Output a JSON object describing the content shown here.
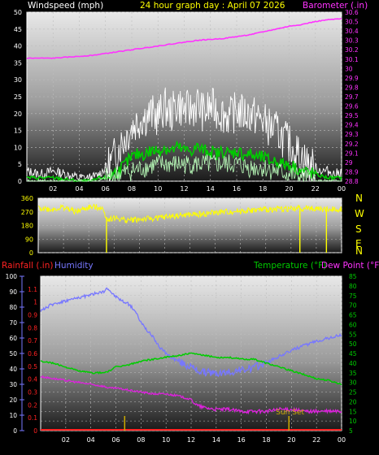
{
  "header": {
    "windspeed_label": "Windspeed (mph)",
    "title": "24 hour graph day : April 07 2026",
    "barometer_label": "Barometer (.in)"
  },
  "compass_letters": [
    "N",
    "W",
    "S",
    "E",
    "N"
  ],
  "lower_header": {
    "rainfall_label": "Rainfall (.in)",
    "humidity_label": "Humidity",
    "temperature_label": "Temperature (°F)",
    "dewpoint_label": "Dew Point (°F)"
  },
  "sunset_label": "Sun Set",
  "colors": {
    "wind_gust": "#ffffff",
    "wind_avg": "#00cc00",
    "wind_low": "#bbffbb",
    "barometer": "#ff33ff",
    "direction": "#ffff00",
    "humidity": "#7777ff",
    "temperature": "#00cc00",
    "dewpoint": "#dd22dd",
    "rainfall": "#ff2222",
    "sun_marker": "#ccaa00"
  },
  "chart_data": [
    {
      "type": "line",
      "title": "24 hour graph day : April 07 2026",
      "xlabel": "",
      "x_tick_labels": [
        "02",
        "04",
        "06",
        "08",
        "10",
        "12",
        "14",
        "16",
        "18",
        "20",
        "22",
        "00"
      ],
      "xlim": [
        0,
        24
      ],
      "ylabel_left": "Windspeed (mph)",
      "ylim_left": [
        0,
        50
      ],
      "y_ticks_left": [
        0,
        5,
        10,
        15,
        20,
        25,
        30,
        35,
        40,
        45,
        50
      ],
      "ylabel_right": "Barometer (.in)",
      "ylim_right": [
        28.8,
        30.6
      ],
      "y_ticks_right": [
        "28.8",
        "28.9",
        "29",
        "29.1",
        "29.2",
        "29.3",
        "29.4",
        "29.5",
        "29.6",
        "29.7",
        "29.8",
        "29.9",
        "30",
        "30.1",
        "30.2",
        "30.3",
        "30.4",
        "30.5",
        "30.6"
      ],
      "series": [
        {
          "role": "wind_gust",
          "axis": "left",
          "x": [
            0,
            1,
            2,
            3,
            4,
            5,
            5.5,
            6,
            6.5,
            7,
            7.5,
            8,
            8.5,
            9,
            9.5,
            10,
            10.5,
            11,
            11.5,
            12,
            12.5,
            13,
            13.5,
            14,
            14.5,
            15,
            15.5,
            16,
            16.5,
            17,
            17.5,
            18,
            18.5,
            19,
            19.5,
            20,
            20.5,
            21,
            21.5,
            22,
            22.5,
            23,
            23.5,
            24
          ],
          "values": [
            3,
            2,
            3,
            2,
            1,
            1,
            2,
            4,
            6,
            10,
            13,
            16,
            18,
            19,
            20,
            19,
            22,
            20,
            23,
            21,
            21,
            23,
            20,
            22,
            21,
            20,
            19,
            21,
            20,
            20,
            19,
            18,
            16,
            15,
            13,
            11,
            9,
            7,
            5,
            4,
            3,
            3,
            2,
            3
          ]
        },
        {
          "role": "wind_avg",
          "axis": "left",
          "x": [
            0,
            2,
            4,
            5,
            5.5,
            6,
            6.5,
            7,
            7.5,
            8,
            8.5,
            9,
            9.5,
            10,
            10.5,
            11,
            11.5,
            12,
            12.5,
            13,
            13.5,
            14,
            14.5,
            15,
            15.5,
            16,
            16.5,
            17,
            17.5,
            18,
            18.5,
            19,
            19.5,
            20,
            20.5,
            21,
            22,
            23,
            24
          ],
          "values": [
            1,
            1,
            0,
            0,
            1,
            1,
            2,
            3,
            5,
            7,
            8,
            8,
            9,
            9,
            10,
            9,
            10,
            9,
            9,
            10,
            9,
            9,
            8,
            9,
            8,
            9,
            8,
            8,
            7,
            7,
            6,
            6,
            5,
            5,
            4,
            3,
            2,
            1,
            1
          ]
        },
        {
          "role": "wind_low",
          "axis": "left",
          "x": [
            0,
            4,
            5,
            5.5,
            6,
            7,
            8,
            9,
            10,
            11,
            12,
            13,
            14,
            15,
            16,
            17,
            18,
            19,
            20,
            21,
            22,
            24
          ],
          "values": [
            0,
            0,
            0,
            0,
            1,
            2,
            3,
            4,
            5,
            5,
            5,
            5,
            5,
            5,
            5,
            4,
            4,
            3,
            2,
            1,
            0,
            0
          ]
        },
        {
          "role": "barometer",
          "axis": "right",
          "x": [
            0,
            1,
            2,
            3,
            4,
            5,
            6,
            7,
            8,
            9,
            10,
            11,
            12,
            13,
            14,
            15,
            16,
            17,
            18,
            19,
            20,
            21,
            22,
            23,
            24
          ],
          "values": [
            30.11,
            30.11,
            30.11,
            30.12,
            30.13,
            30.14,
            30.16,
            30.18,
            30.2,
            30.22,
            30.24,
            30.26,
            30.28,
            30.3,
            30.31,
            30.32,
            30.34,
            30.36,
            30.39,
            30.42,
            30.45,
            30.47,
            30.5,
            30.52,
            30.53
          ]
        }
      ]
    },
    {
      "type": "line",
      "title": "",
      "xlabel": "",
      "xlim": [
        0,
        24
      ],
      "ylabel": "",
      "ylim": [
        0,
        360
      ],
      "y_ticks": [
        0,
        90,
        180,
        270,
        360
      ],
      "compass_letters": [
        "N",
        "W",
        "S",
        "E",
        "N"
      ],
      "series": [
        {
          "role": "direction",
          "x": [
            0,
            1,
            2,
            3,
            4,
            5,
            5.5,
            6,
            7,
            8,
            9,
            10,
            11,
            12,
            13,
            14,
            15,
            16,
            17,
            18,
            19,
            20,
            21,
            22,
            23,
            24
          ],
          "values": [
            300,
            285,
            300,
            270,
            300,
            300,
            220,
            230,
            215,
            220,
            225,
            235,
            245,
            250,
            255,
            265,
            270,
            275,
            280,
            285,
            290,
            290,
            295,
            290,
            285,
            290
          ]
        },
        {
          "role": "direction_spikes",
          "x": [
            5.4,
            20.7,
            22.8
          ],
          "values": [
            0,
            0,
            0
          ]
        }
      ]
    },
    {
      "type": "line",
      "title": "",
      "xlabel": "",
      "x_tick_labels": [
        "02",
        "04",
        "06",
        "08",
        "10",
        "12",
        "14",
        "16",
        "18",
        "20",
        "22",
        "00"
      ],
      "xlim": [
        0,
        24
      ],
      "ylabel_left_outer": "Humidity",
      "ylim_left_outer": [
        0,
        100
      ],
      "y_ticks_left_outer": [
        0,
        10,
        20,
        30,
        40,
        50,
        60,
        70,
        80,
        90,
        100
      ],
      "ylabel_left_inner": "Rainfall (.in)",
      "ylim_left_inner": [
        0,
        1.2
      ],
      "y_ticks_left_inner": [
        "0",
        "0.1",
        "0.2",
        "0.3",
        "0.4",
        "0.5",
        "0.6",
        "0.7",
        "0.8",
        "0.9",
        "1",
        "1.1"
      ],
      "ylabel_right": "Temperature (°F) Dew Point (°F)",
      "ylim_right": [
        5,
        85
      ],
      "y_ticks_right": [
        5,
        10,
        15,
        20,
        25,
        30,
        35,
        40,
        45,
        50,
        55,
        60,
        65,
        70,
        75,
        80,
        85
      ],
      "series": [
        {
          "role": "humidity",
          "axis": "left_outer",
          "x": [
            0,
            1,
            2,
            3,
            4,
            5,
            5.4,
            5.8,
            6.5,
            7,
            7.5,
            8,
            8.5,
            9,
            9.5,
            10,
            10.5,
            11,
            11.5,
            12,
            12.5,
            13,
            14,
            15,
            16,
            17,
            18,
            19,
            20,
            21,
            22,
            23,
            24
          ],
          "values": [
            78,
            82,
            84,
            86,
            88,
            90,
            92,
            88,
            84,
            82,
            78,
            70,
            65,
            60,
            54,
            50,
            47,
            45,
            43,
            41,
            39,
            38,
            37,
            38,
            39,
            41,
            44,
            48,
            52,
            55,
            58,
            60,
            62
          ]
        },
        {
          "role": "temperature",
          "axis": "right",
          "x": [
            0,
            1,
            2,
            3,
            4,
            5,
            5.5,
            6,
            7,
            8,
            9,
            10,
            11,
            12,
            13,
            14,
            15,
            16,
            17,
            18,
            19,
            20,
            21,
            22,
            23,
            24
          ],
          "values": [
            41,
            40,
            38,
            36,
            35,
            35,
            36,
            38,
            39,
            41,
            42,
            43,
            44,
            45,
            44,
            43,
            43,
            42,
            42,
            40,
            38,
            36,
            34,
            32,
            31,
            29
          ]
        },
        {
          "role": "dewpoint",
          "axis": "right",
          "x": [
            0,
            1,
            2,
            3,
            4,
            5,
            5.5,
            6,
            7,
            8,
            9,
            10,
            11,
            12,
            12.5,
            13,
            14,
            15,
            16,
            17,
            18,
            19,
            20,
            21,
            22,
            23,
            24
          ],
          "values": [
            33,
            32,
            31,
            30,
            29,
            28,
            27,
            27,
            26,
            25,
            24,
            24,
            23,
            21,
            18,
            17,
            16,
            16,
            15,
            15,
            15,
            16,
            16,
            15,
            15,
            15,
            15
          ]
        },
        {
          "role": "rainfall",
          "axis": "left_inner",
          "x": [
            0,
            24
          ],
          "values": [
            0,
            0
          ]
        }
      ],
      "markers": [
        {
          "role": "sunrise",
          "x": 6.7
        },
        {
          "role": "sunset",
          "x": 19.8,
          "label": "Sun Set"
        }
      ]
    }
  ]
}
